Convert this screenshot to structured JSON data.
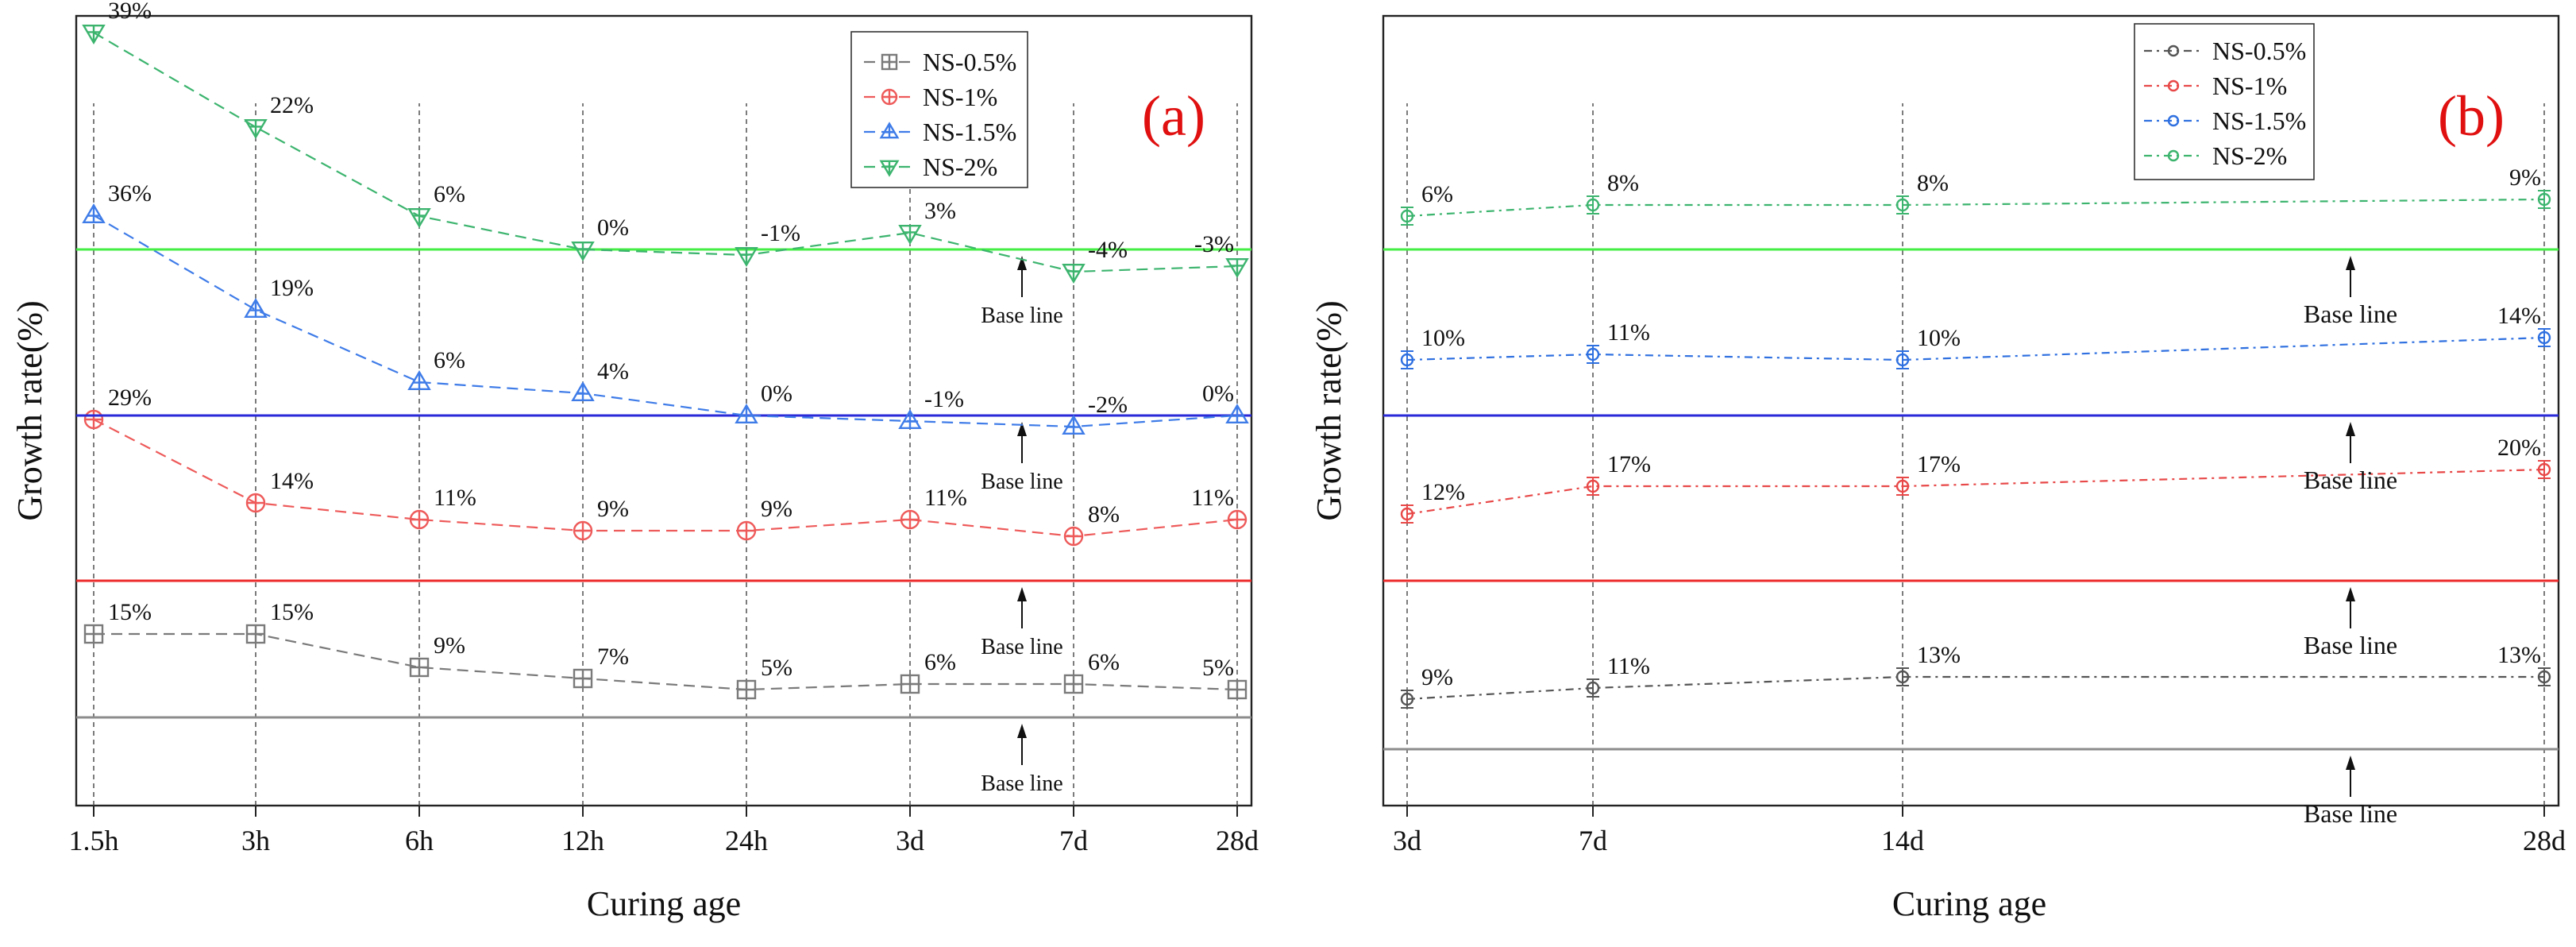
{
  "chart_data": [
    {
      "type": "line",
      "panel_label": "(a)",
      "xlabel": "Curing age",
      "ylabel": "Growth rate(%)",
      "categories": [
        "1.5h",
        "3h",
        "6h",
        "12h",
        "24h",
        "3d",
        "7d",
        "28d"
      ],
      "baseline_label": "Base line",
      "series": [
        {
          "name": "NS-0.5%",
          "color": "#7a7a7a",
          "baseline_color": "#8c8c8c",
          "marker": "square-cross",
          "values": [
            15,
            15,
            9,
            7,
            5,
            6,
            6,
            5
          ],
          "labels": [
            "15%",
            "15%",
            "9%",
            "7%",
            "5%",
            "6%",
            "6%",
            "5%"
          ]
        },
        {
          "name": "NS-1%",
          "color": "#ee5a5a",
          "baseline_color": "#ee2a2a",
          "marker": "circle-cross",
          "values": [
            29,
            14,
            11,
            9,
            9,
            11,
            8,
            11
          ],
          "labels": [
            "29%",
            "14%",
            "11%",
            "9%",
            "9%",
            "11%",
            "8%",
            "11%"
          ]
        },
        {
          "name": "NS-1.5%",
          "color": "#3f7ce8",
          "baseline_color": "#2a2ad8",
          "marker": "triangle-up",
          "values": [
            36,
            19,
            6,
            4,
            0,
            -1,
            -2,
            0
          ],
          "labels": [
            "36%",
            "19%",
            "6%",
            "4%",
            "0%",
            "-1%",
            "-2%",
            "0%"
          ]
        },
        {
          "name": "NS-2%",
          "color": "#3cb46e",
          "baseline_color": "#44ee44",
          "marker": "triangle-down",
          "values": [
            39,
            22,
            6,
            0,
            -1,
            3,
            -4,
            -3
          ],
          "labels": [
            "39%",
            "22%",
            "6%",
            "0%",
            "-1%",
            "3%",
            "-4%",
            "-3%"
          ]
        }
      ]
    },
    {
      "type": "line",
      "panel_label": "(b)",
      "xlabel": "Curing age",
      "ylabel": "Growth rate(%)",
      "categories": [
        "3d",
        "7d",
        "14d",
        "28d"
      ],
      "x": [
        3,
        7,
        14,
        28
      ],
      "baseline_label": "Base line",
      "series": [
        {
          "name": "NS-0.5%",
          "color": "#555555",
          "baseline_color": "#8c8c8c",
          "marker": "small-circle",
          "values": [
            9,
            11,
            13,
            13
          ],
          "labels": [
            "9%",
            "11%",
            "13%",
            "13%"
          ]
        },
        {
          "name": "NS-1%",
          "color": "#e84848",
          "baseline_color": "#ee2a2a",
          "marker": "small-circle",
          "values": [
            12,
            17,
            17,
            20
          ],
          "labels": [
            "12%",
            "17%",
            "17%",
            "20%"
          ]
        },
        {
          "name": "NS-1.5%",
          "color": "#2f70e0",
          "baseline_color": "#2a2ad8",
          "marker": "small-circle",
          "values": [
            10,
            11,
            10,
            14
          ],
          "labels": [
            "10%",
            "11%",
            "10%",
            "14%"
          ]
        },
        {
          "name": "NS-2%",
          "color": "#3cb46e",
          "baseline_color": "#44ee44",
          "marker": "small-circle",
          "values": [
            6,
            8,
            8,
            9
          ],
          "labels": [
            "6%",
            "8%",
            "8%",
            "9%"
          ]
        }
      ]
    }
  ]
}
